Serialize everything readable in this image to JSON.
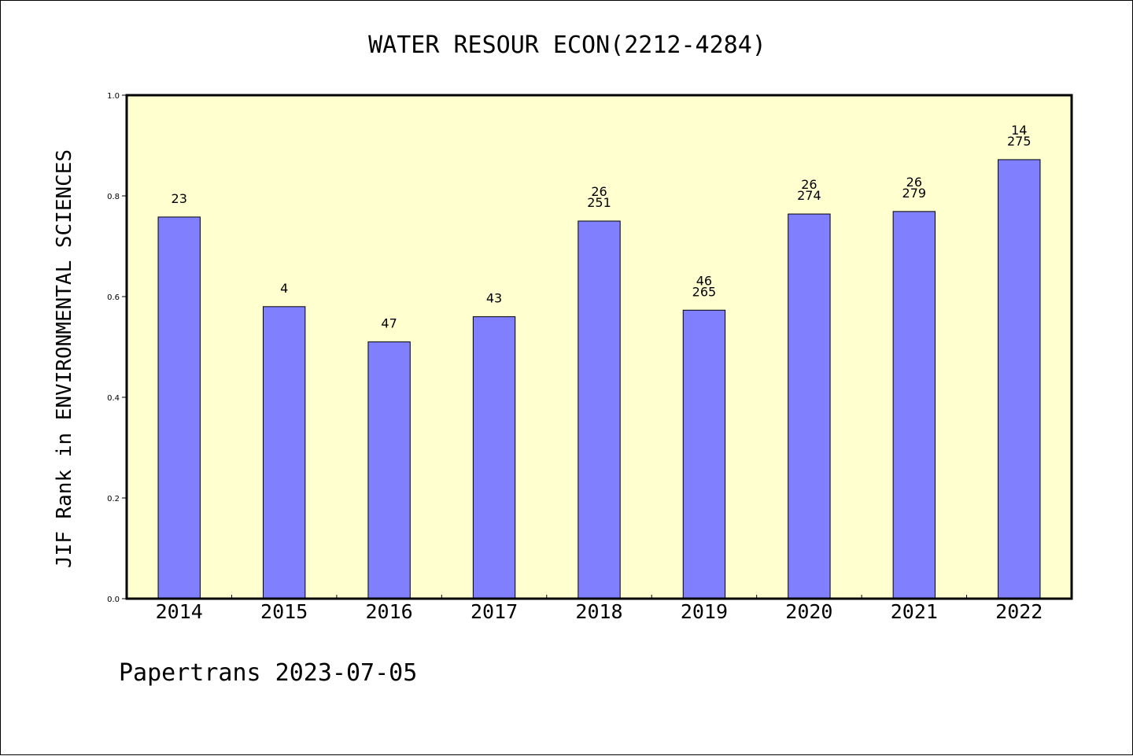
{
  "chart_data": {
    "type": "bar",
    "title": "WATER RESOUR ECON(2212-4284)",
    "ylabel": "JIF Rank in ENVIRONMENTAL SCIENCES",
    "xlabel": "",
    "ylim": [
      0,
      1.0
    ],
    "yticks": [
      "0.0",
      "0.2",
      "0.4",
      "0.6",
      "0.8",
      "1.0"
    ],
    "grid": false,
    "bar_color": "#8080ff",
    "plot_background": "#ffffd0",
    "categories": [
      "2014",
      "2015",
      "2016",
      "2017",
      "2018",
      "2019",
      "2020",
      "2021",
      "2022"
    ],
    "values": [
      0.758,
      0.58,
      0.51,
      0.56,
      0.75,
      0.573,
      0.764,
      0.769,
      0.872
    ],
    "labels": [
      [
        "23"
      ],
      [
        "4"
      ],
      [
        "47"
      ],
      [
        "43"
      ],
      [
        "26",
        "251"
      ],
      [
        "46",
        "265"
      ],
      [
        "26",
        "274"
      ],
      [
        "26",
        "279"
      ],
      [
        "14",
        "275"
      ]
    ]
  },
  "footer": "Papertrans 2023-07-05"
}
